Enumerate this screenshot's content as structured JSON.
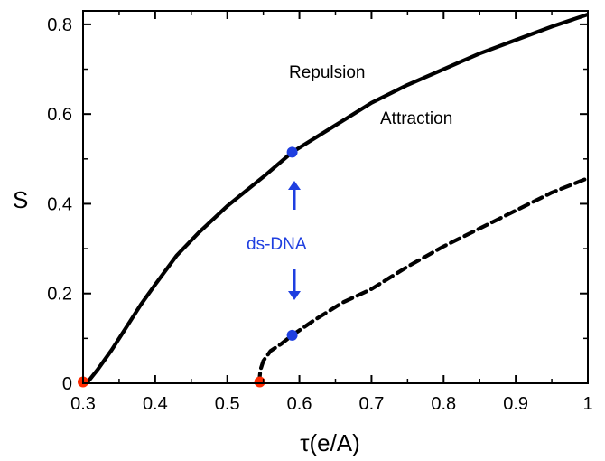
{
  "chart_data": {
    "type": "line",
    "xlabel": "τ(e/A)",
    "ylabel": "S",
    "xlim": [
      0.3,
      1.0
    ],
    "ylim": [
      0,
      0.83
    ],
    "x_ticks": [
      "0.3",
      "0.4",
      "0.5",
      "0.6",
      "0.7",
      "0.8",
      "0.9",
      "1"
    ],
    "y_ticks": [
      "0",
      "0.2",
      "0.4",
      "0.6",
      "0.8"
    ],
    "grid": false,
    "series": [
      {
        "style": "solid",
        "color": "#000000",
        "x": [
          0.305,
          0.31,
          0.32,
          0.34,
          0.36,
          0.38,
          0.4,
          0.43,
          0.46,
          0.5,
          0.55,
          0.59,
          0.65,
          0.7,
          0.75,
          0.8,
          0.85,
          0.9,
          0.95,
          1.0
        ],
        "y": [
          0.0,
          0.01,
          0.03,
          0.075,
          0.125,
          0.175,
          0.22,
          0.285,
          0.335,
          0.395,
          0.46,
          0.515,
          0.575,
          0.625,
          0.665,
          0.7,
          0.735,
          0.765,
          0.795,
          0.822
        ]
      },
      {
        "style": "dashed",
        "color": "#000000",
        "x": [
          0.544,
          0.546,
          0.55,
          0.56,
          0.575,
          0.59,
          0.62,
          0.66,
          0.7,
          0.75,
          0.8,
          0.85,
          0.9,
          0.95,
          1.0
        ],
        "y": [
          0.0,
          0.03,
          0.05,
          0.072,
          0.088,
          0.107,
          0.14,
          0.18,
          0.21,
          0.26,
          0.305,
          0.345,
          0.385,
          0.425,
          0.457
        ]
      }
    ],
    "markers": [
      {
        "x": 0.3,
        "y": 0.003,
        "color": "#ff2a00"
      },
      {
        "x": 0.545,
        "y": 0.003,
        "color": "#ff2a00"
      },
      {
        "x": 0.59,
        "y": 0.515,
        "color": "#1f3fe0"
      },
      {
        "x": 0.59,
        "y": 0.107,
        "color": "#1f3fe0"
      }
    ],
    "annotations": [
      {
        "text": "Repulsion",
        "color": "#000000"
      },
      {
        "text": "Attraction",
        "color": "#000000"
      },
      {
        "text": "ds-DNA",
        "color": "#1f3fe0"
      }
    ],
    "arrows": [
      {
        "direction": "up",
        "color": "#1f3fe0"
      },
      {
        "direction": "down",
        "color": "#1f3fe0"
      }
    ]
  }
}
